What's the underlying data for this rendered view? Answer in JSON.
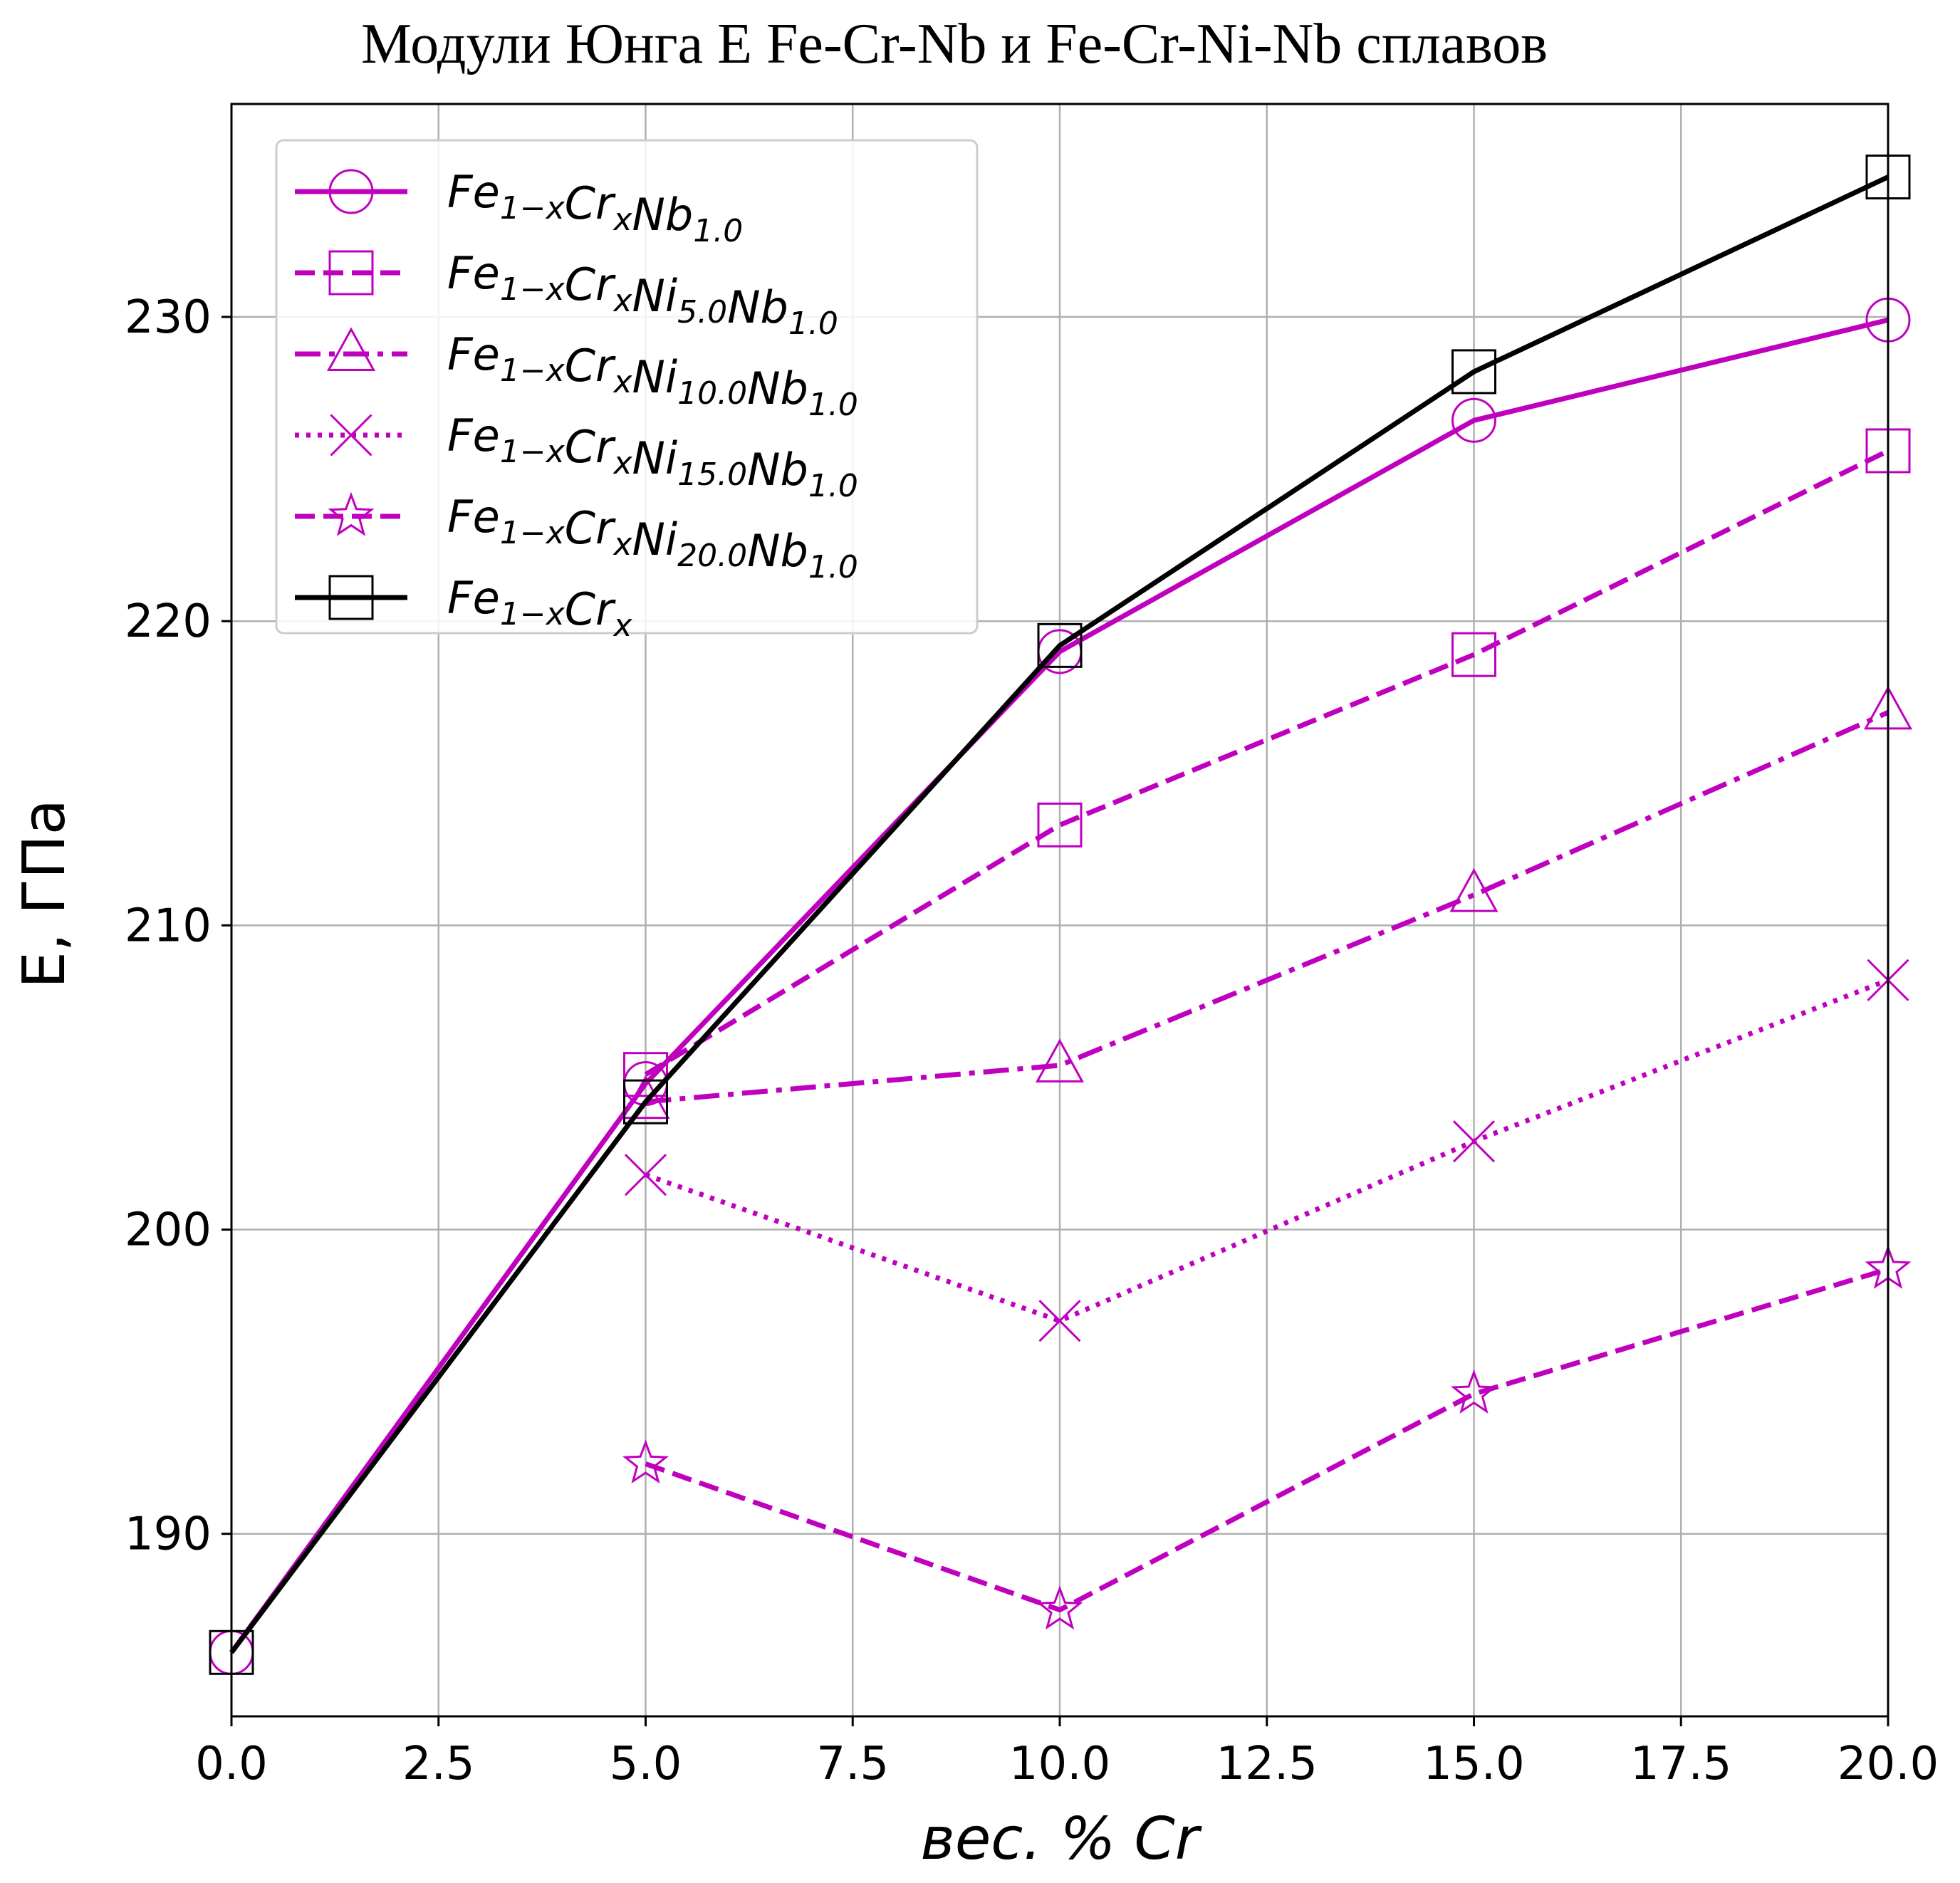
{
  "chart_data": {
    "type": "line",
    "title": "Модули Юнга E Fe-Cr-Nb и Fe-Cr-Ni-Nb сплавов",
    "xlabel": "вес. % Cr",
    "ylabel": "E, ГПа",
    "xlim": [
      0,
      20
    ],
    "ylim": [
      184,
      237
    ],
    "xticks": [
      "0.0",
      "2.5",
      "5.0",
      "7.5",
      "10.0",
      "12.5",
      "15.0",
      "17.5",
      "20.0"
    ],
    "yticks": [
      "190",
      "200",
      "210",
      "220",
      "230"
    ],
    "grid": true,
    "legend_position": "top-left",
    "series": [
      {
        "name": "Fe1−xCrxNb1.0",
        "legend": {
          "parts": [
            [
              "Fe",
              "1−x"
            ],
            [
              "Cr",
              "x"
            ],
            [
              "Nb",
              "1.0"
            ]
          ]
        },
        "color": "#bf00bf",
        "line": "solid",
        "marker": "circle",
        "x": [
          0,
          5,
          10,
          15,
          20
        ],
        "y": [
          186.1,
          204.8,
          219.0,
          226.6,
          229.9
        ]
      },
      {
        "name": "Fe1−xCrxNi5.0Nb1.0",
        "legend": {
          "parts": [
            [
              "Fe",
              "1−x"
            ],
            [
              "Cr",
              "x"
            ],
            [
              "Ni",
              "5.0"
            ],
            [
              "Nb",
              "1.0"
            ]
          ]
        },
        "color": "#bf00bf",
        "line": "dashed",
        "marker": "square",
        "x": [
          5,
          10,
          15,
          20
        ],
        "y": [
          205.1,
          213.3,
          218.9,
          225.6
        ]
      },
      {
        "name": "Fe1−xCrxNi10.0Nb1.0",
        "legend": {
          "parts": [
            [
              "Fe",
              "1−x"
            ],
            [
              "Cr",
              "x"
            ],
            [
              "Ni",
              "10.0"
            ],
            [
              "Nb",
              "1.0"
            ]
          ]
        },
        "color": "#bf00bf",
        "line": "dashdot",
        "marker": "triangle",
        "x": [
          5,
          10,
          15,
          20
        ],
        "y": [
          204.2,
          205.4,
          211.0,
          217.0
        ]
      },
      {
        "name": "Fe1−xCrxNi15.0Nb1.0",
        "legend": {
          "parts": [
            [
              "Fe",
              "1−x"
            ],
            [
              "Cr",
              "x"
            ],
            [
              "Ni",
              "15.0"
            ],
            [
              "Nb",
              "1.0"
            ]
          ]
        },
        "color": "#bf00bf",
        "line": "dotted",
        "marker": "x",
        "x": [
          5,
          10,
          15,
          20
        ],
        "y": [
          201.8,
          197.0,
          202.9,
          208.2
        ]
      },
      {
        "name": "Fe1−xCrxNi20.0Nb1.0",
        "legend": {
          "parts": [
            [
              "Fe",
              "1−x"
            ],
            [
              "Cr",
              "x"
            ],
            [
              "Ni",
              "20.0"
            ],
            [
              "Nb",
              "1.0"
            ]
          ]
        },
        "color": "#bf00bf",
        "line": "dashed",
        "marker": "star",
        "x": [
          5,
          10,
          15,
          20
        ],
        "y": [
          192.3,
          187.5,
          194.6,
          198.7
        ]
      },
      {
        "name": "Fe1−xCrx",
        "legend": {
          "parts": [
            [
              "Fe",
              "1−x"
            ],
            [
              "Cr",
              "x"
            ]
          ]
        },
        "color": "#000000",
        "line": "solid",
        "marker": "square",
        "x": [
          0,
          5,
          10,
          15,
          20
        ],
        "y": [
          186.1,
          204.2,
          219.2,
          228.2,
          234.6
        ]
      }
    ]
  }
}
